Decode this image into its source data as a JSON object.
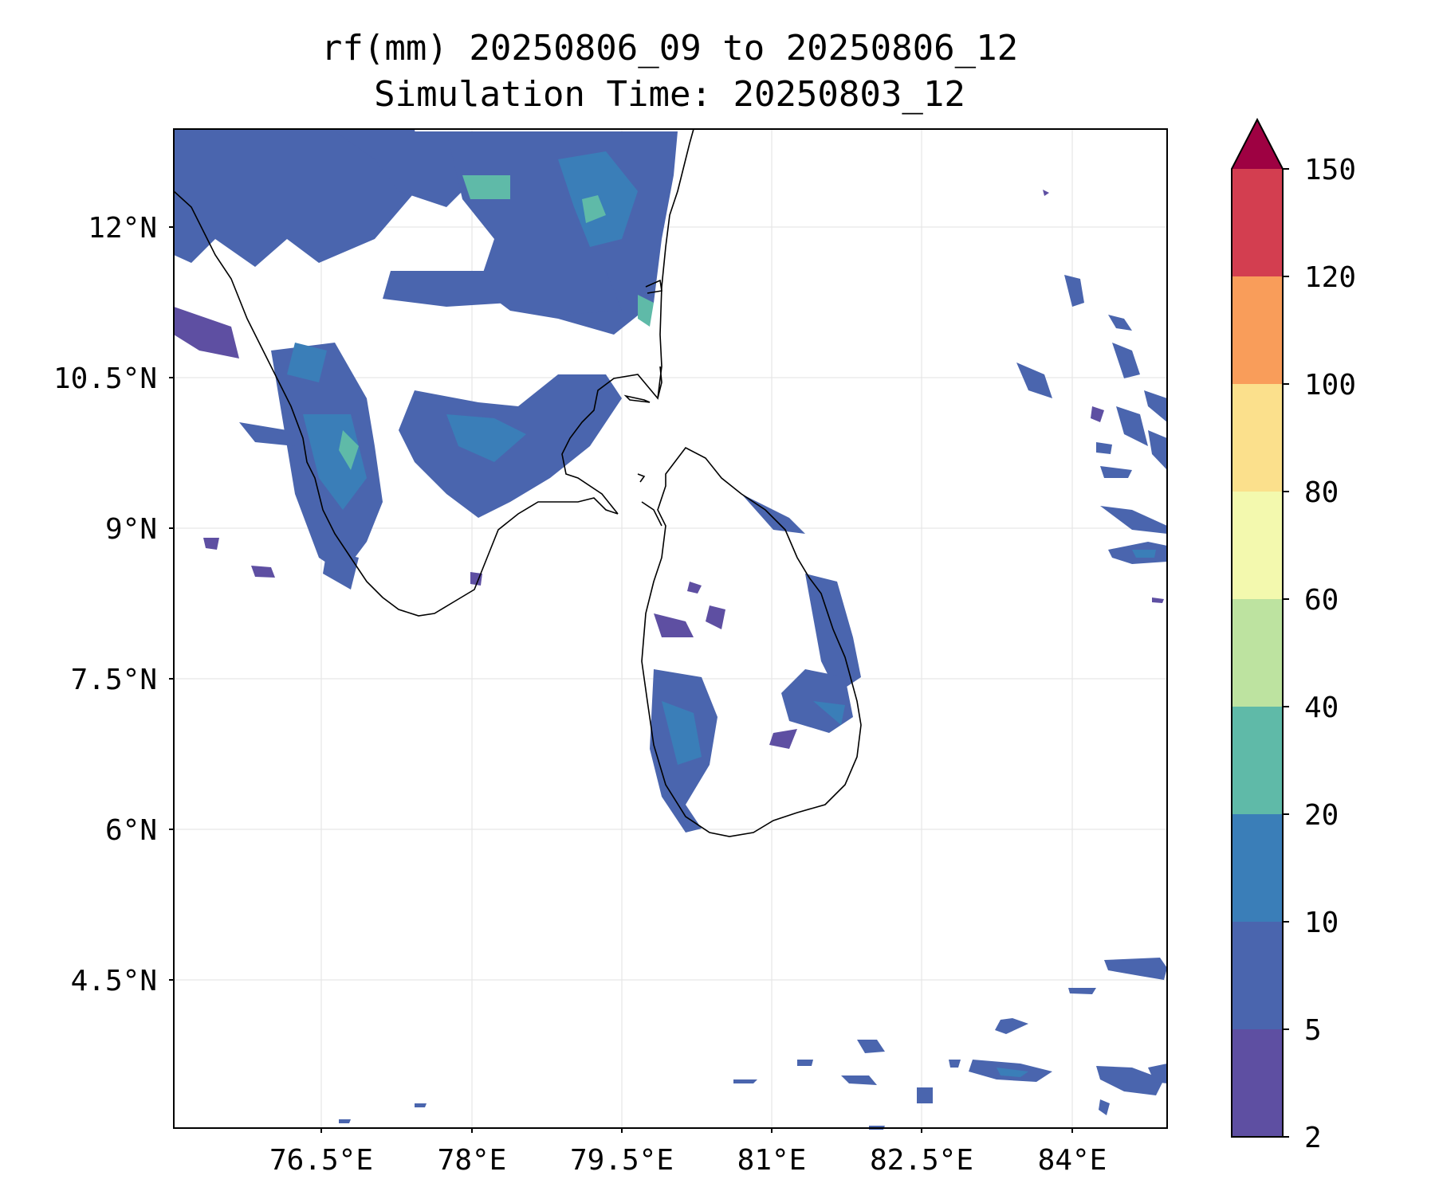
{
  "title": {
    "line1": "rf(mm) 20250806_09 to 20250806_12",
    "line2": "Simulation Time: 20250803_12"
  },
  "map": {
    "x_ticks": [
      "76.5°E",
      "78°E",
      "79.5°E",
      "81°E",
      "82.5°E",
      "84°E"
    ],
    "y_ticks": [
      "12°N",
      "10.5°N",
      "9°N",
      "7.5°N",
      "6°N",
      "4.5°N"
    ],
    "lon_range": [
      75.0,
      84.9
    ],
    "lat_range": [
      3.1,
      13.0
    ],
    "gridlines": true,
    "field_colors": {
      "2-5": "#5e4fa2",
      "5-10": "#4a65ae",
      "10-20": "#3a7eb8",
      "20-40": "#5fbaa8"
    }
  },
  "colorbar": {
    "levels": [
      "2",
      "5",
      "10",
      "20",
      "40",
      "60",
      "80",
      "100",
      "120",
      "150"
    ],
    "colors": [
      "#5e4fa2",
      "#4a65ae",
      "#3a7eb8",
      "#5fbaa8",
      "#bde3a0",
      "#f3f9ae",
      "#fbe08c",
      "#f99d5a",
      "#d33e50"
    ],
    "extend_color": "#9e0142"
  }
}
